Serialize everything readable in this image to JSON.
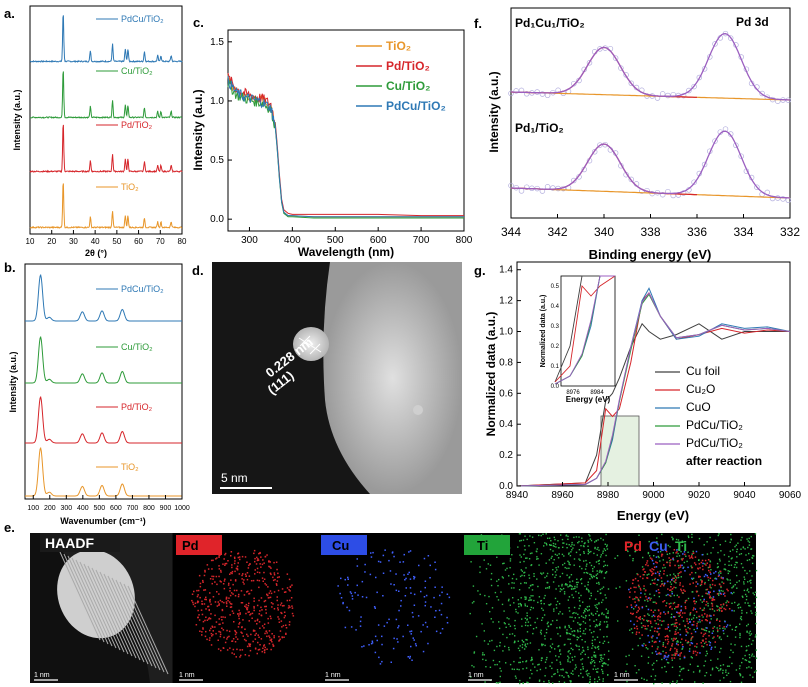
{
  "panels": {
    "a": {
      "letter": "a.",
      "xlabel": "2θ (°)",
      "ylabel": "Intensity (a.u.)",
      "xticks": [
        "10",
        "20",
        "30",
        "40",
        "50",
        "60",
        "70",
        "80"
      ],
      "labels": [
        "PdCu/TiO₂",
        "Cu/TiO₂",
        "Pd/TiO₂",
        "TiO₂"
      ]
    },
    "b": {
      "letter": "b.",
      "xlabel": "Wavenumber (cm⁻¹)",
      "ylabel": "Intensity (a.u.)",
      "xticks": [
        "100",
        "200",
        "300",
        "400",
        "500",
        "600",
        "700",
        "800",
        "900",
        "1000"
      ],
      "labels": [
        "PdCu/TiO₂",
        "Cu/TiO₂",
        "Pd/TiO₂",
        "TiO₂"
      ]
    },
    "c": {
      "letter": "c.",
      "xlabel": "Wavelength (nm)",
      "ylabel": "Intensity (a.u.)",
      "xticks": [
        "300",
        "400",
        "500",
        "600",
        "700",
        "800"
      ],
      "yticks": [
        "0.0",
        "0.5",
        "1.0",
        "1.5"
      ],
      "legend": [
        "TiO₂",
        "Pd/TiO₂",
        "Cu/TiO₂",
        "PdCu/TiO₂"
      ]
    },
    "d": {
      "letter": "d.",
      "lattice_text_1": "0.228 nm",
      "lattice_text_2": "(111)",
      "scale": "5 nm"
    },
    "e": {
      "letter": "e.",
      "tiles": [
        "HAADF",
        "Pd",
        "Cu",
        "Ti"
      ],
      "merge": [
        "Pd",
        "Cu",
        "Ti"
      ],
      "scale": "1 nm"
    },
    "f": {
      "letter": "f.",
      "title": "Pd 3d",
      "xlabel": "Binding energy (eV)",
      "ylabel": "Intensity (a.u.)",
      "xticks": [
        "344",
        "342",
        "340",
        "338",
        "336",
        "334",
        "332"
      ],
      "top_label": "Pd₁Cu₁/TiO₂",
      "bottom_label": "Pd₁/TiO₂"
    },
    "g": {
      "letter": "g.",
      "xlabel": "Energy (eV)",
      "ylabel": "Normalized data (a.u.)",
      "xticks": [
        "8940",
        "8960",
        "8980",
        "9000",
        "9020",
        "9040",
        "9060"
      ],
      "yticks": [
        "0.0",
        "0.2",
        "0.4",
        "0.6",
        "0.8",
        "1.0",
        "1.2",
        "1.4"
      ],
      "legend": [
        "Cu foil",
        "Cu₂O",
        "CuO",
        "PdCu/TiO₂",
        "PdCu/TiO₂",
        "after reaction"
      ],
      "inset_xlabel": "Energy (eV)",
      "inset_ylabel": "Normalized data (a.u.)",
      "inset_xticks": [
        "8976",
        "8984"
      ],
      "inset_yticks": [
        "0.0",
        "0.1",
        "0.2",
        "0.3",
        "0.4",
        "0.5"
      ]
    }
  },
  "colors": {
    "TiO2": "#e8962a",
    "Pd": "#d6262b",
    "Cu": "#2e9b3a",
    "PdCu": "#2f79b5",
    "foil": "#404040",
    "purple": "#9b5fc0"
  },
  "chart_data": [
    {
      "type": "line",
      "panel": "a",
      "xlim": [
        10,
        80
      ],
      "series": [
        {
          "name": "PdCu/TiO₂",
          "peaks": [
            [
              25.3,
              1.0
            ],
            [
              37.8,
              0.22
            ],
            [
              48.0,
              0.35
            ],
            [
              53.9,
              0.25
            ],
            [
              55.1,
              0.25
            ],
            [
              62.7,
              0.2
            ],
            [
              68.8,
              0.12
            ],
            [
              70.3,
              0.12
            ],
            [
              75.0,
              0.12
            ]
          ]
        },
        {
          "name": "Cu/TiO₂",
          "peaks": [
            [
              25.3,
              1.0
            ],
            [
              37.8,
              0.22
            ],
            [
              48.0,
              0.35
            ],
            [
              53.9,
              0.25
            ],
            [
              55.1,
              0.25
            ],
            [
              62.7,
              0.2
            ],
            [
              68.8,
              0.12
            ],
            [
              70.3,
              0.12
            ],
            [
              75.0,
              0.12
            ]
          ]
        },
        {
          "name": "Pd/TiO₂",
          "peaks": [
            [
              25.3,
              1.0
            ],
            [
              37.8,
              0.22
            ],
            [
              48.0,
              0.35
            ],
            [
              53.9,
              0.25
            ],
            [
              55.1,
              0.25
            ],
            [
              62.7,
              0.2
            ],
            [
              68.8,
              0.12
            ],
            [
              70.3,
              0.12
            ],
            [
              75.0,
              0.12
            ]
          ]
        },
        {
          "name": "TiO₂",
          "peaks": [
            [
              25.3,
              1.0
            ],
            [
              37.8,
              0.22
            ],
            [
              48.0,
              0.35
            ],
            [
              53.9,
              0.25
            ],
            [
              55.1,
              0.25
            ],
            [
              62.7,
              0.2
            ],
            [
              68.8,
              0.12
            ],
            [
              70.3,
              0.12
            ],
            [
              75.0,
              0.12
            ]
          ]
        }
      ]
    },
    {
      "type": "line",
      "panel": "b",
      "xlim": [
        50,
        1000
      ],
      "series": [
        {
          "name": "PdCu/TiO₂",
          "peaks": [
            [
              144,
              1.0
            ],
            [
              197,
              0.08
            ],
            [
              397,
              0.2
            ],
            [
              516,
              0.22
            ],
            [
              639,
              0.25
            ]
          ]
        },
        {
          "name": "Cu/TiO₂",
          "peaks": [
            [
              144,
              1.0
            ],
            [
              197,
              0.08
            ],
            [
              397,
              0.2
            ],
            [
              516,
              0.22
            ],
            [
              639,
              0.25
            ]
          ]
        },
        {
          "name": "Pd/TiO₂",
          "peaks": [
            [
              144,
              1.0
            ],
            [
              197,
              0.08
            ],
            [
              397,
              0.2
            ],
            [
              516,
              0.22
            ],
            [
              639,
              0.25
            ]
          ]
        },
        {
          "name": "TiO₂",
          "peaks": [
            [
              144,
              1.0
            ],
            [
              197,
              0.08
            ],
            [
              397,
              0.2
            ],
            [
              516,
              0.22
            ],
            [
              639,
              0.25
            ]
          ]
        }
      ]
    },
    {
      "type": "line",
      "panel": "c",
      "xlim": [
        250,
        800
      ],
      "ylim": [
        -0.1,
        1.6
      ],
      "x": [
        250,
        270,
        290,
        310,
        330,
        350,
        360,
        365,
        370,
        375,
        380,
        390,
        400,
        450,
        500,
        600,
        700,
        800
      ],
      "series": [
        {
          "name": "TiO₂",
          "values": [
            1.18,
            1.08,
            1.04,
            1.02,
            1.0,
            0.95,
            0.8,
            0.6,
            0.35,
            0.15,
            0.06,
            0.03,
            0.03,
            0.02,
            0.02,
            0.02,
            0.02,
            0.02
          ]
        },
        {
          "name": "Pd/TiO₂",
          "values": [
            1.2,
            1.1,
            1.06,
            1.04,
            1.02,
            0.97,
            0.82,
            0.62,
            0.37,
            0.17,
            0.08,
            0.05,
            0.04,
            0.04,
            0.04,
            0.04,
            0.03,
            0.03
          ]
        },
        {
          "name": "Cu/TiO₂",
          "values": [
            1.15,
            1.05,
            1.02,
            1.0,
            0.98,
            0.93,
            0.78,
            0.58,
            0.33,
            0.14,
            0.05,
            0.02,
            0.02,
            0.01,
            0.01,
            0.01,
            0.01,
            0.01
          ]
        },
        {
          "name": "PdCu/TiO₂",
          "values": [
            1.17,
            1.07,
            1.03,
            1.01,
            0.99,
            0.94,
            0.79,
            0.59,
            0.34,
            0.15,
            0.06,
            0.03,
            0.03,
            0.02,
            0.02,
            0.02,
            0.02,
            0.02
          ]
        }
      ]
    },
    {
      "type": "line",
      "panel": "f",
      "xlim": [
        344,
        332
      ],
      "series": [
        {
          "name": "Pd₁Cu₁/TiO₂",
          "peaks": [
            [
              340.0,
              0.55
            ],
            [
              334.8,
              0.75
            ]
          ],
          "baseline": [
            0.05,
            0.25
          ]
        },
        {
          "name": "Pd₁/TiO₂",
          "peaks": [
            [
              340.0,
              0.55
            ],
            [
              334.8,
              0.75
            ]
          ],
          "baseline": [
            0.05,
            0.25
          ]
        }
      ]
    },
    {
      "type": "line",
      "panel": "g",
      "xlim": [
        8940,
        9060
      ],
      "ylim": [
        0,
        1.45
      ],
      "x": [
        8940,
        8970,
        8975,
        8979,
        8982,
        8985,
        8990,
        8995,
        8998,
        9003,
        9010,
        9020,
        9030,
        9040,
        9050,
        9060
      ],
      "series": [
        {
          "name": "Cu foil",
          "values": [
            0.0,
            0.02,
            0.2,
            0.55,
            0.6,
            0.7,
            0.9,
            1.05,
            1.0,
            0.95,
            0.98,
            1.05,
            0.95,
            1.0,
            1.0,
            1.0
          ]
        },
        {
          "name": "Cu₂O",
          "values": [
            0.0,
            0.02,
            0.1,
            0.5,
            0.45,
            0.5,
            0.8,
            1.2,
            1.25,
            1.1,
            0.95,
            0.98,
            1.02,
            0.99,
            1.01,
            1.0
          ]
        },
        {
          "name": "CuO",
          "values": [
            0.0,
            0.01,
            0.05,
            0.15,
            0.3,
            0.55,
            0.9,
            1.2,
            1.28,
            1.1,
            0.95,
            0.97,
            1.05,
            1.02,
            1.03,
            1.0
          ]
        },
        {
          "name": "PdCu/TiO₂",
          "values": [
            0.0,
            0.01,
            0.05,
            0.15,
            0.32,
            0.55,
            0.88,
            1.18,
            1.24,
            1.1,
            0.96,
            0.98,
            1.04,
            1.01,
            1.02,
            1.0
          ]
        },
        {
          "name": "PdCu/TiO₂ after reaction",
          "values": [
            0.0,
            0.01,
            0.05,
            0.16,
            0.33,
            0.56,
            0.9,
            1.19,
            1.25,
            1.1,
            0.96,
            0.98,
            1.04,
            1.01,
            1.02,
            1.0
          ]
        }
      ]
    }
  ]
}
